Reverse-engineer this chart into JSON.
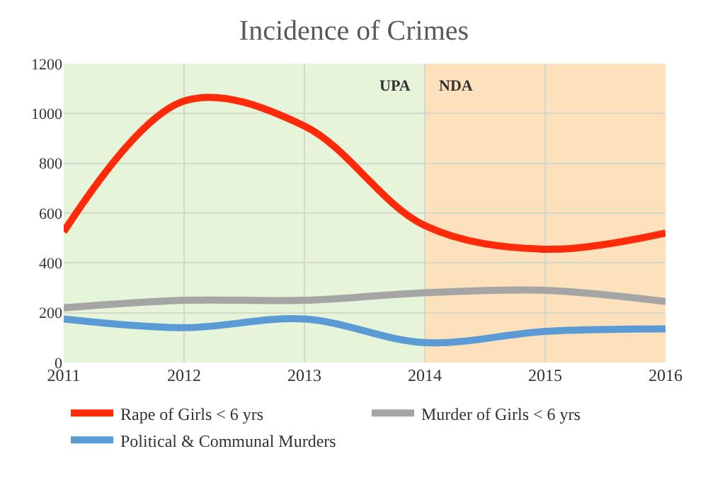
{
  "chart_data": {
    "type": "line",
    "title": "Incidence of Crimes",
    "x": [
      2011,
      2012,
      2013,
      2014,
      2015,
      2016
    ],
    "series": [
      {
        "name": "Rape of Girls < 6 yrs",
        "color": "#ff2a0a",
        "values": [
          525,
          1050,
          950,
          550,
          455,
          520
        ]
      },
      {
        "name": "Murder of Girls < 6 yrs",
        "color": "#a5a5a5",
        "values": [
          220,
          250,
          250,
          280,
          290,
          245
        ]
      },
      {
        "name": "Political & Communal Murders",
        "color": "#5b9bd5",
        "values": [
          175,
          140,
          175,
          80,
          125,
          135
        ]
      }
    ],
    "xlim": [
      2011,
      2016
    ],
    "xticks": [
      2011,
      2012,
      2013,
      2014,
      2015,
      2016
    ],
    "ylim": [
      0,
      1200
    ],
    "yticks": [
      0,
      200,
      400,
      600,
      800,
      1000,
      1200
    ],
    "bands": [
      {
        "axis": "x",
        "from": 2011,
        "to": 2014,
        "label": "UPA",
        "color": "#e6f4d9"
      },
      {
        "axis": "x",
        "from": 2014,
        "to": 2016,
        "label": "NDA",
        "color": "#fde0bc"
      }
    ],
    "grid": true,
    "legend": "bottom",
    "marker": "none",
    "line_style": "solid"
  }
}
